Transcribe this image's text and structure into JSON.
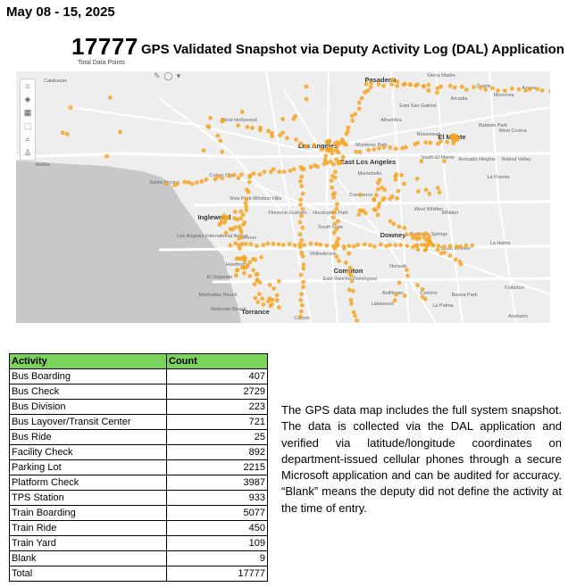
{
  "header": {
    "date_range": "May 08 - 15, 2025",
    "total_number": "17777",
    "total_caption": "Total Data Points",
    "map_title": "GPS Validated Snapshot via Deputy Activity Log (DAL) Application"
  },
  "map": {
    "point_color": "#f5a623",
    "land_color": "#eeeeee",
    "ocean_color": "#c6c8ca",
    "road_color": "#ffffff",
    "toolbar_icons": [
      "home-icon",
      "layers-icon",
      "basemap-icon",
      "select-icon",
      "search-icon",
      "person-icon"
    ],
    "mini_tool_icons": [
      "pen-icon",
      "pointer-icon",
      "dropdown-icon"
    ],
    "labels": [
      {
        "text": "Calabasas",
        "bold": false
      },
      {
        "text": "Pasadena",
        "bold": true
      },
      {
        "text": "Duarte",
        "bold": false
      },
      {
        "text": "Azusa",
        "bold": false
      },
      {
        "text": "Sierra Madre",
        "bold": false
      },
      {
        "text": "Arcadia",
        "bold": false
      },
      {
        "text": "Monrovia",
        "bold": false
      },
      {
        "text": "East San Gabriel",
        "bold": false
      },
      {
        "text": "Alhambra",
        "bold": false
      },
      {
        "text": "West Hollywood",
        "bold": false
      },
      {
        "text": "Rosemead",
        "bold": false
      },
      {
        "text": "El Monte",
        "bold": true
      },
      {
        "text": "Baldwin Park",
        "bold": false
      },
      {
        "text": "West Covina",
        "bold": false
      },
      {
        "text": "Monterey Park",
        "bold": false
      },
      {
        "text": "Los Angeles",
        "bold": true
      },
      {
        "text": "South El Monte",
        "bold": false
      },
      {
        "text": "Avocado Heights",
        "bold": false
      },
      {
        "text": "Walnut Valley",
        "bold": false
      },
      {
        "text": "Malibu",
        "bold": false
      },
      {
        "text": "East Los Angeles",
        "bold": true
      },
      {
        "text": "Culver City",
        "bold": false
      },
      {
        "text": "Montebello",
        "bold": false
      },
      {
        "text": "La Puente",
        "bold": false
      },
      {
        "text": "Santa Monica",
        "bold": false
      },
      {
        "text": "View Park-Windsor Hills",
        "bold": false
      },
      {
        "text": "Commerce",
        "bold": false
      },
      {
        "text": "Inglewood",
        "bold": true
      },
      {
        "text": "Florence-Graham",
        "bold": false
      },
      {
        "text": "Huntington Park",
        "bold": false
      },
      {
        "text": "West Whittier",
        "bold": false
      },
      {
        "text": "Whittier",
        "bold": false
      },
      {
        "text": "South Gate",
        "bold": false
      },
      {
        "text": "Los Angeles International Airport",
        "bold": false
      },
      {
        "text": "Lennox",
        "bold": false
      },
      {
        "text": "Downey",
        "bold": true
      },
      {
        "text": "Santa Fe Springs",
        "bold": false
      },
      {
        "text": "South Whittier",
        "bold": false
      },
      {
        "text": "La Habra",
        "bold": false
      },
      {
        "text": "Hawthorne",
        "bold": false
      },
      {
        "text": "Willowbrook",
        "bold": false
      },
      {
        "text": "Norwalk",
        "bold": false
      },
      {
        "text": "El Segundo",
        "bold": false
      },
      {
        "text": "Compton",
        "bold": true
      },
      {
        "text": "East Rancho Dominguez",
        "bold": false
      },
      {
        "text": "Manhattan Beach",
        "bold": false
      },
      {
        "text": "Bellflower",
        "bold": false
      },
      {
        "text": "Cerritos",
        "bold": false
      },
      {
        "text": "Buena Park",
        "bold": false
      },
      {
        "text": "Fullerton",
        "bold": false
      },
      {
        "text": "Redondo Beach",
        "bold": false
      },
      {
        "text": "Torrance",
        "bold": true
      },
      {
        "text": "Carson",
        "bold": false
      },
      {
        "text": "Lakewood",
        "bold": false
      },
      {
        "text": "La Palma",
        "bold": false
      },
      {
        "text": "Anaheim",
        "bold": false
      }
    ]
  },
  "table": {
    "headers": {
      "activity": "Activity",
      "count": "Count"
    },
    "rows": [
      {
        "activity": "Bus Boarding",
        "count": "407"
      },
      {
        "activity": "Bus Check",
        "count": "2729"
      },
      {
        "activity": "Bus Division",
        "count": "223"
      },
      {
        "activity": "Bus Layover/Transit Center",
        "count": "721"
      },
      {
        "activity": "Bus Ride",
        "count": "25"
      },
      {
        "activity": "Facility Check",
        "count": "892"
      },
      {
        "activity": "Parking Lot",
        "count": "2215"
      },
      {
        "activity": "Platform Check",
        "count": "3987"
      },
      {
        "activity": "TPS Station",
        "count": "933"
      },
      {
        "activity": "Train Boarding",
        "count": "5077"
      },
      {
        "activity": "Train Ride",
        "count": "450"
      },
      {
        "activity": "Train Yard",
        "count": "109"
      },
      {
        "activity": "Blank",
        "count": "9"
      }
    ],
    "total": {
      "activity": "Total",
      "count": "17777"
    }
  },
  "description": "The GPS data map includes the full system snapshot. The data is collected via the DAL application and verified via latitude/longitude coordinates on department-issued cellular phones through a secure Microsoft application and can be audited for accuracy. “Blank” means the deputy did not define the activity at the time of entry."
}
